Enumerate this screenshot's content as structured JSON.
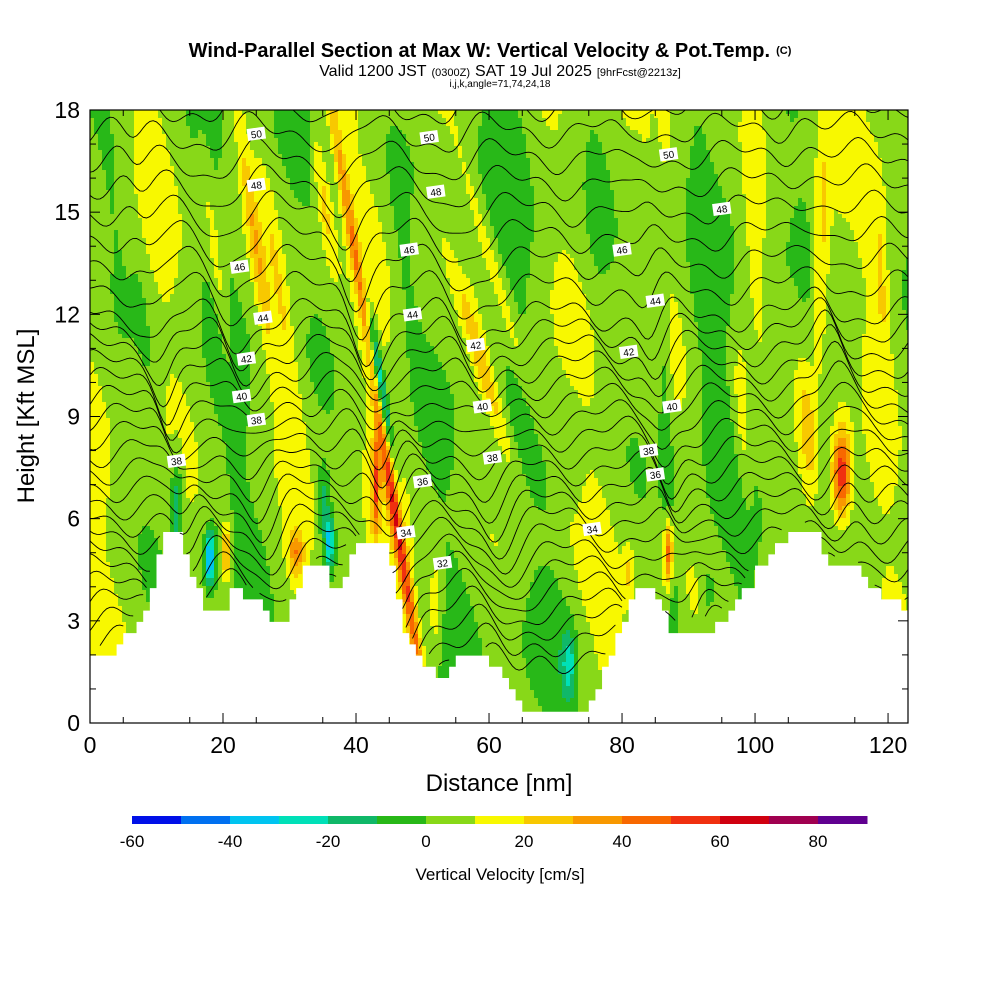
{
  "title": {
    "main": "Wind-Parallel Section at Max W: Vertical Velocity & Pot.Temp.",
    "copyright": "(C)",
    "line2_a": "Valid 1200 JST",
    "line2_b": "(0300Z)",
    "line2_c": "SAT 19 Jul 2025",
    "line2_d": "[9hrFcst@2213z]",
    "line3": "i,j,k,angle=71,74,24,18"
  },
  "chart_data": {
    "type": "heatmap",
    "xlabel": "Distance [nm]",
    "ylabel": "Height [Kft MSL]",
    "xlim": [
      0,
      123
    ],
    "ylim": [
      0,
      18
    ],
    "x_ticks": [
      {
        "v": 0,
        "label": "0"
      },
      {
        "v": 20,
        "label": "20"
      },
      {
        "v": 40,
        "label": "40"
      },
      {
        "v": 60,
        "label": "60"
      },
      {
        "v": 80,
        "label": "80"
      },
      {
        "v": 100,
        "label": "100"
      },
      {
        "v": 120,
        "label": "120"
      }
    ],
    "y_ticks": [
      {
        "v": 0,
        "label": "0"
      },
      {
        "v": 3,
        "label": "3"
      },
      {
        "v": 6,
        "label": "6"
      },
      {
        "v": 9,
        "label": "9"
      },
      {
        "v": 12,
        "label": "12"
      },
      {
        "v": 15,
        "label": "15"
      },
      {
        "v": 18,
        "label": "18"
      }
    ],
    "colorbar": {
      "label": "Vertical Velocity [cm/s]",
      "min": -60,
      "max": 90,
      "step": 10,
      "colors": [
        "#0010e8",
        "#0070f0",
        "#00c4f0",
        "#00e0b8",
        "#10b868",
        "#28b818",
        "#88d818",
        "#f8f800",
        "#f8c800",
        "#f89800",
        "#f86800",
        "#f03010",
        "#d00010",
        "#a00050",
        "#600090"
      ],
      "tick_labels": [
        {
          "v": -60,
          "label": "-60"
        },
        {
          "v": -40,
          "label": "-40"
        },
        {
          "v": -20,
          "label": "-20"
        },
        {
          "v": 0,
          "label": "0"
        },
        {
          "v": 20,
          "label": "20"
        },
        {
          "v": 40,
          "label": "40"
        },
        {
          "v": 60,
          "label": "60"
        },
        {
          "v": 80,
          "label": "80"
        }
      ]
    },
    "terrain": [
      [
        0,
        2.0
      ],
      [
        3,
        2.0
      ],
      [
        4,
        2.3
      ],
      [
        6,
        2.7
      ],
      [
        7,
        3.0
      ],
      [
        8,
        3.4
      ],
      [
        9,
        4.0
      ],
      [
        10,
        4.8
      ],
      [
        11,
        5.5
      ],
      [
        13,
        5.5
      ],
      [
        14,
        4.9
      ],
      [
        15,
        4.3
      ],
      [
        16,
        3.8
      ],
      [
        17,
        3.4
      ],
      [
        20,
        3.4
      ],
      [
        21,
        3.8
      ],
      [
        22,
        4.0
      ],
      [
        23,
        3.7
      ],
      [
        25,
        3.7
      ],
      [
        26,
        3.3
      ],
      [
        27,
        3.0
      ],
      [
        29,
        3.0
      ],
      [
        30,
        3.7
      ],
      [
        32,
        4.5
      ],
      [
        35,
        4.5
      ],
      [
        36,
        4.0
      ],
      [
        37,
        3.8
      ],
      [
        38,
        4.2
      ],
      [
        39,
        5.1
      ],
      [
        42,
        5.3
      ],
      [
        44,
        5.3
      ],
      [
        45,
        4.7
      ],
      [
        46,
        3.5
      ],
      [
        47,
        2.5
      ],
      [
        48,
        2.2
      ],
      [
        49,
        2.0
      ],
      [
        50,
        1.8
      ],
      [
        51,
        1.6
      ],
      [
        52,
        1.4
      ],
      [
        54,
        1.5
      ],
      [
        55,
        1.9
      ],
      [
        58,
        2.0
      ],
      [
        60,
        1.8
      ],
      [
        62,
        1.3
      ],
      [
        63,
        0.9
      ],
      [
        64,
        0.6
      ],
      [
        65,
        0.3
      ],
      [
        74,
        0.3
      ],
      [
        75,
        0.6
      ],
      [
        76,
        0.9
      ],
      [
        77,
        1.5
      ],
      [
        78,
        2.0
      ],
      [
        79,
        2.6
      ],
      [
        80,
        3.0
      ],
      [
        81,
        3.7
      ],
      [
        82,
        4.0
      ],
      [
        84,
        4.0
      ],
      [
        85,
        3.5
      ],
      [
        86,
        3.2
      ],
      [
        87,
        2.8
      ],
      [
        89,
        2.7
      ],
      [
        93,
        2.7
      ],
      [
        94,
        3.0
      ],
      [
        96,
        3.2
      ],
      [
        97,
        3.6
      ],
      [
        99,
        4.0
      ],
      [
        100,
        4.5
      ],
      [
        102,
        5.0
      ],
      [
        104,
        5.3
      ],
      [
        105,
        5.6
      ],
      [
        109,
        5.6
      ],
      [
        110,
        5.0
      ],
      [
        111,
        4.6
      ],
      [
        115,
        4.6
      ],
      [
        116,
        4.3
      ],
      [
        117,
        4.0
      ],
      [
        118,
        3.8
      ],
      [
        120,
        3.6
      ],
      [
        122,
        3.4
      ],
      [
        123,
        3.2
      ]
    ],
    "isentropes": [
      {
        "theta": 32,
        "label": "32"
      },
      {
        "theta": 34,
        "label": "34"
      },
      {
        "theta": 36,
        "label": "36"
      },
      {
        "theta": 38,
        "label": "38"
      },
      {
        "theta": 40,
        "label": "40"
      },
      {
        "theta": 42,
        "label": "42"
      },
      {
        "theta": 44,
        "label": "44"
      },
      {
        "theta": 46,
        "label": "46"
      },
      {
        "theta": 48,
        "label": "48"
      },
      {
        "theta": 50,
        "label": "50"
      }
    ],
    "contour_labels": [
      {
        "x": 25,
        "y": 17.3,
        "label": "50"
      },
      {
        "x": 51,
        "y": 17.2,
        "label": "50"
      },
      {
        "x": 87,
        "y": 16.7,
        "label": "50"
      },
      {
        "x": 25,
        "y": 15.8,
        "label": "48"
      },
      {
        "x": 52,
        "y": 15.6,
        "label": "48"
      },
      {
        "x": 95,
        "y": 15.1,
        "label": "48"
      },
      {
        "x": 22.5,
        "y": 13.4,
        "label": "46"
      },
      {
        "x": 48,
        "y": 13.9,
        "label": "46"
      },
      {
        "x": 80,
        "y": 13.9,
        "label": "46"
      },
      {
        "x": 26,
        "y": 11.9,
        "label": "44"
      },
      {
        "x": 48.5,
        "y": 12.0,
        "label": "44"
      },
      {
        "x": 85,
        "y": 12.4,
        "label": "44"
      },
      {
        "x": 23.5,
        "y": 10.7,
        "label": "42"
      },
      {
        "x": 58,
        "y": 11.1,
        "label": "42"
      },
      {
        "x": 81,
        "y": 10.9,
        "label": "42"
      },
      {
        "x": 22.8,
        "y": 9.6,
        "label": "40"
      },
      {
        "x": 59,
        "y": 9.3,
        "label": "40"
      },
      {
        "x": 87.5,
        "y": 9.3,
        "label": "40"
      },
      {
        "x": 13,
        "y": 7.7,
        "label": "38"
      },
      {
        "x": 25,
        "y": 8.9,
        "label": "38"
      },
      {
        "x": 60.5,
        "y": 7.8,
        "label": "38"
      },
      {
        "x": 84,
        "y": 8.0,
        "label": "38"
      },
      {
        "x": 50,
        "y": 7.1,
        "label": "36"
      },
      {
        "x": 85,
        "y": 7.3,
        "label": "36"
      },
      {
        "x": 47.5,
        "y": 5.6,
        "label": "34"
      },
      {
        "x": 75.5,
        "y": 5.7,
        "label": "34"
      },
      {
        "x": 53,
        "y": 4.7,
        "label": "32"
      }
    ],
    "w_features": [
      {
        "x": 44,
        "y": 8.5,
        "sx": 0.9,
        "sy": 9.5,
        "slope": -0.8,
        "amp": 55
      },
      {
        "x": 43,
        "y": 7.0,
        "sx": 0.6,
        "sy": 1.6,
        "slope": 0,
        "amp": 40
      },
      {
        "x": 43.5,
        "y": 10.0,
        "sx": 0.8,
        "sy": 2.5,
        "slope": -0.8,
        "amp": -55
      },
      {
        "x": 42,
        "y": 10.5,
        "sx": 0.7,
        "sy": 3.0,
        "slope": -0.8,
        "amp": -20
      },
      {
        "x": 59,
        "y": 10.5,
        "sx": 1.3,
        "sy": 3.0,
        "slope": -1.5,
        "amp": 22
      },
      {
        "x": 62,
        "y": 12.5,
        "sx": 1.2,
        "sy": 5.0,
        "slope": -1.5,
        "amp": 12
      },
      {
        "x": 25,
        "y": 14.0,
        "sx": 1.1,
        "sy": 4.0,
        "slope": -0.7,
        "amp": 22
      },
      {
        "x": 29,
        "y": 12.0,
        "sx": 1.2,
        "sy": 4.0,
        "slope": -0.7,
        "amp": 15
      },
      {
        "x": 35,
        "y": 15.5,
        "sx": 1.0,
        "sy": 2.0,
        "slope": -0.6,
        "amp": 20
      },
      {
        "x": 19,
        "y": 13.5,
        "sx": 1.0,
        "sy": 3.0,
        "slope": -0.6,
        "amp": 14
      },
      {
        "x": 87,
        "y": 6.5,
        "sx": 1.0,
        "sy": 10.0,
        "slope": -0.2,
        "amp": -15
      },
      {
        "x": 87,
        "y": 5.0,
        "sx": 0.7,
        "sy": 1.1,
        "slope": 0,
        "amp": 50
      },
      {
        "x": 113,
        "y": 7.3,
        "sx": 1.4,
        "sy": 1.3,
        "slope": 0,
        "amp": 55
      },
      {
        "x": 108,
        "y": 8.5,
        "sx": 1.3,
        "sy": 1.8,
        "slope": -0.3,
        "amp": 22
      },
      {
        "x": 110,
        "y": 14.0,
        "sx": 1.2,
        "sy": 3.5,
        "slope": 0.1,
        "amp": 20
      },
      {
        "x": 119,
        "y": 13.0,
        "sx": 1.0,
        "sy": 2.5,
        "slope": -0.2,
        "amp": 15
      },
      {
        "x": 98,
        "y": 9.0,
        "sx": 1.2,
        "sy": 2.5,
        "slope": -0.3,
        "amp": 15
      },
      {
        "x": 100,
        "y": 15.0,
        "sx": 1.5,
        "sy": 3.0,
        "slope": 0,
        "amp": 12
      },
      {
        "x": 18,
        "y": 4.8,
        "sx": 0.8,
        "sy": 0.8,
        "slope": 0,
        "amp": -48
      },
      {
        "x": 20.5,
        "y": 5.0,
        "sx": 0.8,
        "sy": 0.9,
        "slope": 0,
        "amp": 35
      },
      {
        "x": 13,
        "y": 6.3,
        "sx": 0.9,
        "sy": 1.5,
        "slope": 0,
        "amp": -25
      },
      {
        "x": 36,
        "y": 5.3,
        "sx": 0.7,
        "sy": 0.8,
        "slope": 0,
        "amp": -40
      },
      {
        "x": 35,
        "y": 6.5,
        "sx": 0.9,
        "sy": 1.0,
        "slope": 0,
        "amp": -20
      },
      {
        "x": 31,
        "y": 5.0,
        "sx": 1.2,
        "sy": 0.7,
        "slope": 0,
        "amp": 30
      },
      {
        "x": 72,
        "y": 1.7,
        "sx": 1.0,
        "sy": 1.0,
        "slope": 0,
        "amp": -25
      },
      {
        "x": 69,
        "y": 2.5,
        "sx": 5.5,
        "sy": 2.2,
        "slope": 0,
        "amp": -7
      },
      {
        "x": 52,
        "y": 3.5,
        "sx": 1.0,
        "sy": 1.3,
        "slope": 0,
        "amp": 18
      },
      {
        "x": 42,
        "y": 4.0,
        "sx": 1.0,
        "sy": 1.3,
        "slope": 0,
        "amp": 12
      },
      {
        "x": 76,
        "y": 15.0,
        "sx": 2.0,
        "sy": 3.0,
        "slope": -0.2,
        "amp": -6
      },
      {
        "x": 83,
        "y": 15.5,
        "sx": 2.0,
        "sy": 3.0,
        "slope": -0.2,
        "amp": -6
      },
      {
        "x": 64,
        "y": 16.0,
        "sx": 2.0,
        "sy": 2.5,
        "slope": -0.2,
        "amp": -5
      },
      {
        "x": 55,
        "y": 14.0,
        "sx": 2.0,
        "sy": 4.0,
        "slope": -0.3,
        "amp": -5
      },
      {
        "x": 72,
        "y": 8.0,
        "sx": 2.5,
        "sy": 2.0,
        "slope": 0,
        "amp": -5
      },
      {
        "x": 92,
        "y": 12.0,
        "sx": 2.0,
        "sy": 5.0,
        "slope": -0.2,
        "amp": -5
      },
      {
        "x": 104,
        "y": 10.0,
        "sx": 1.5,
        "sy": 4.0,
        "slope": -0.2,
        "amp": -7
      },
      {
        "x": 115,
        "y": 11.0,
        "sx": 1.5,
        "sy": 4.0,
        "slope": -0.2,
        "amp": -6
      },
      {
        "x": 47,
        "y": 13.5,
        "sx": 1.5,
        "sy": 3.5,
        "slope": -0.6,
        "amp": -6
      },
      {
        "x": 39,
        "y": 14.0,
        "sx": 1.2,
        "sy": 3.0,
        "slope": -0.7,
        "amp": -7
      },
      {
        "x": 8,
        "y": 12.0,
        "sx": 1.5,
        "sy": 4.0,
        "slope": -0.6,
        "amp": -6
      },
      {
        "x": 3,
        "y": 16.0,
        "sx": 1.5,
        "sy": 3.0,
        "slope": -0.5,
        "amp": -5
      },
      {
        "x": 93,
        "y": 3.8,
        "sx": 1.0,
        "sy": 0.8,
        "slope": 0,
        "amp": -12
      },
      {
        "x": 81,
        "y": 4.4,
        "sx": 0.8,
        "sy": 0.8,
        "slope": 0,
        "amp": 15
      }
    ]
  }
}
